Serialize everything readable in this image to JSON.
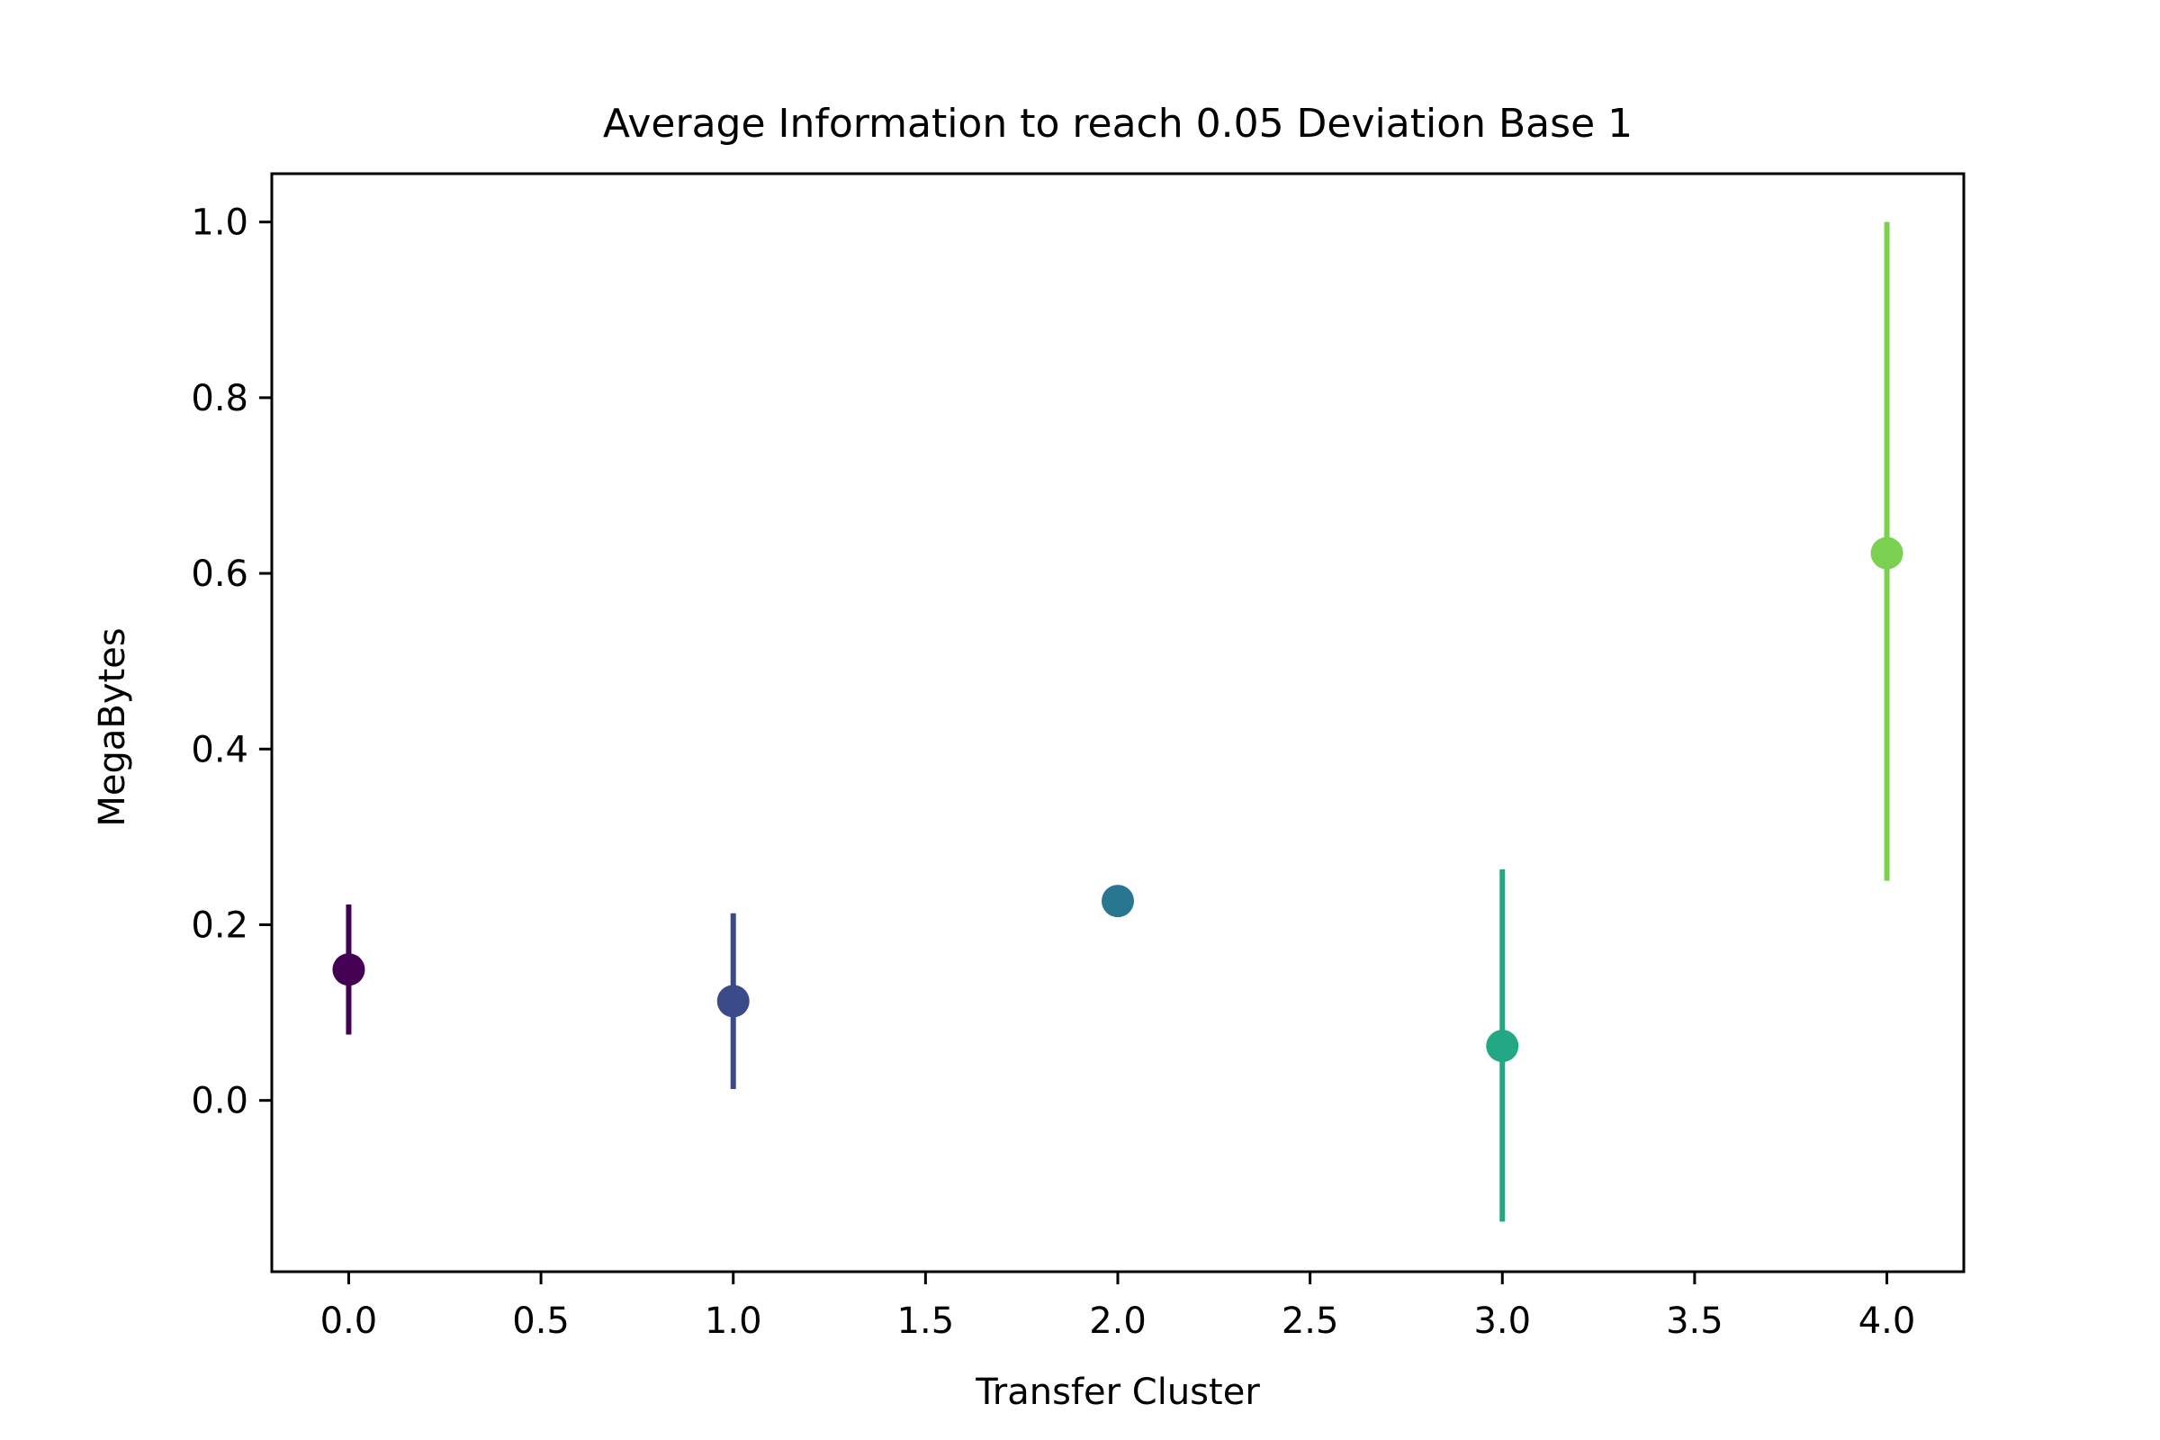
{
  "chart_data": {
    "type": "scatter",
    "title": "Average Information to reach 0.05 Deviation Base 1",
    "xlabel": "Transfer Cluster",
    "ylabel": "MegaBytes",
    "xlim": [
      -0.2,
      4.2
    ],
    "ylim": [
      -0.195,
      1.055
    ],
    "xticks": [
      0.0,
      0.5,
      1.0,
      1.5,
      2.0,
      2.5,
      3.0,
      3.5,
      4.0
    ],
    "xtick_labels": [
      "0.0",
      "0.5",
      "1.0",
      "1.5",
      "2.0",
      "2.5",
      "3.0",
      "3.5",
      "4.0"
    ],
    "yticks": [
      0.0,
      0.2,
      0.4,
      0.6,
      0.8,
      1.0
    ],
    "ytick_labels": [
      "0.0",
      "0.2",
      "0.4",
      "0.6",
      "0.8",
      "1.0"
    ],
    "grid": false,
    "points": [
      {
        "x": 0,
        "y": 0.149,
        "err_low": 0.075,
        "err_high": 0.223,
        "color": "#440154"
      },
      {
        "x": 1,
        "y": 0.113,
        "err_low": 0.013,
        "err_high": 0.213,
        "color": "#3b4a88"
      },
      {
        "x": 2,
        "y": 0.227,
        "err_low": 0.227,
        "err_high": 0.227,
        "color": "#287690"
      },
      {
        "x": 3,
        "y": 0.062,
        "err_low": -0.138,
        "err_high": 0.263,
        "color": "#22a884"
      },
      {
        "x": 4,
        "y": 0.623,
        "err_low": 0.25,
        "err_high": 1.0,
        "color": "#7ad151"
      }
    ]
  }
}
